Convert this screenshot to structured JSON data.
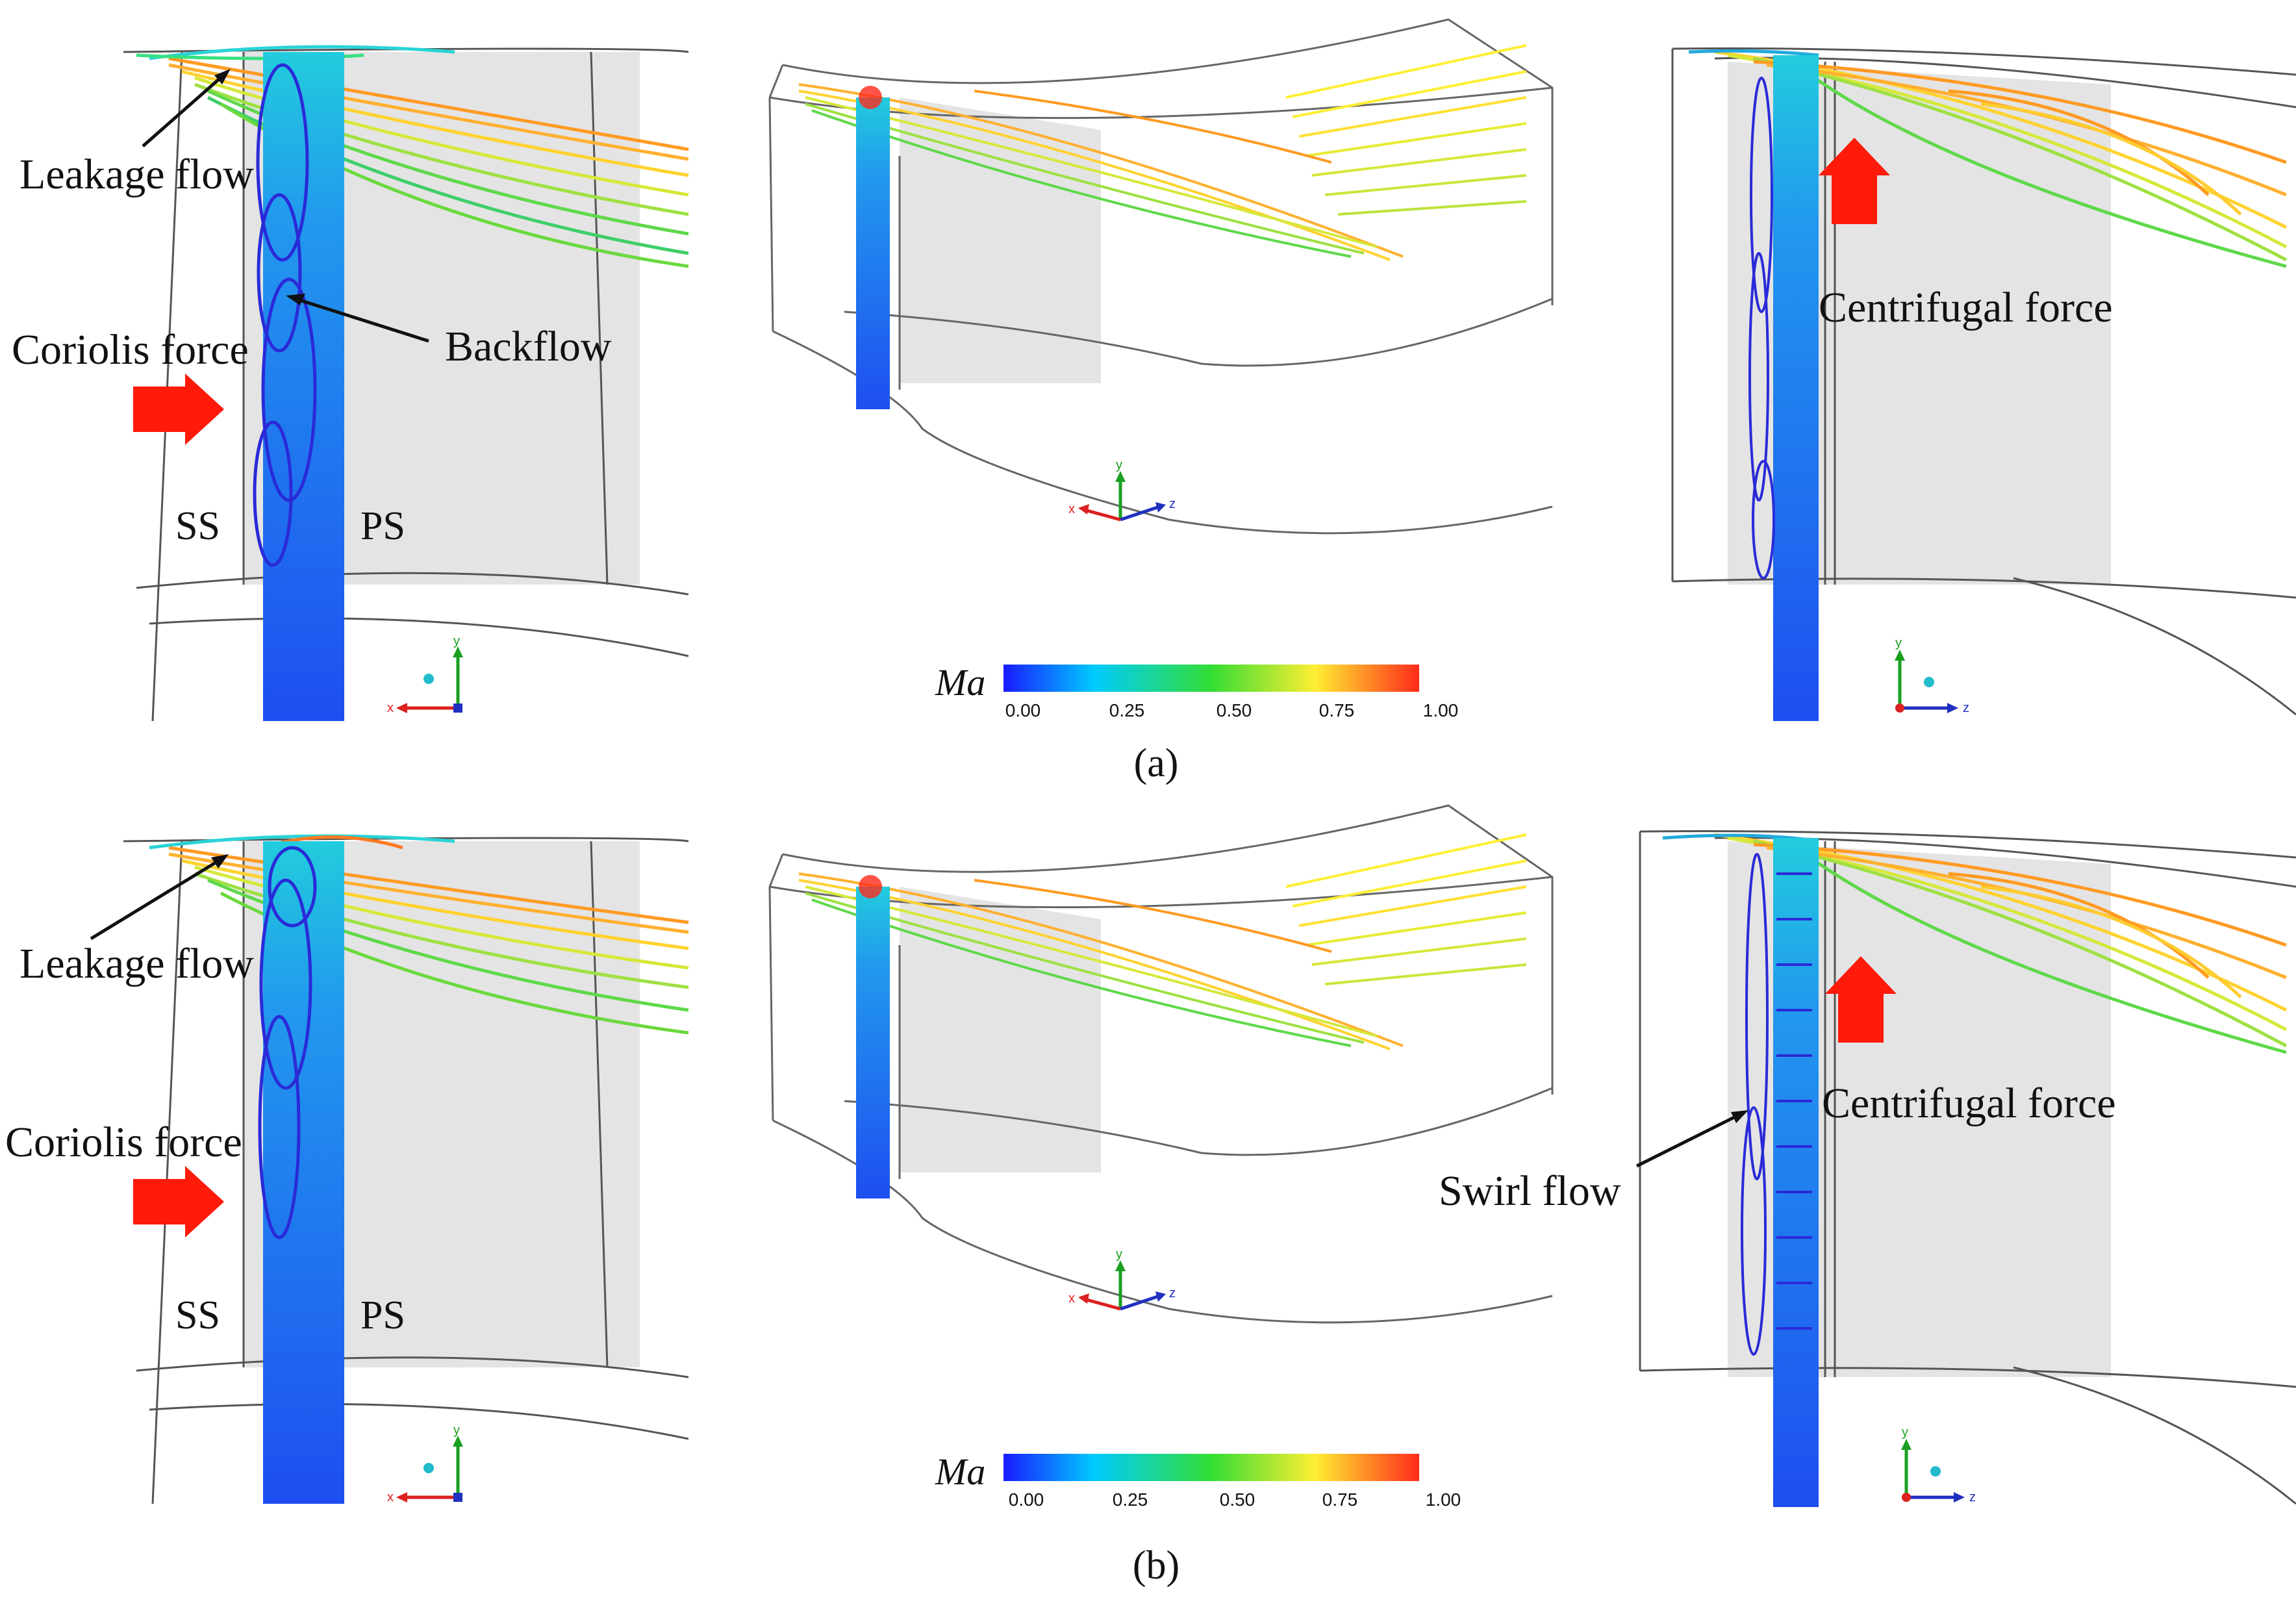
{
  "figure": {
    "panels": [
      {
        "caption": "(a)",
        "left_view": {
          "annotations": {
            "leakage": "Leakage flow",
            "coriolis": "Coriolis force",
            "backflow": "Backflow",
            "ss": "SS",
            "ps": "PS"
          },
          "axes": {
            "horizontal": "x",
            "vertical": "y"
          }
        },
        "middle_view": {
          "axes": {
            "x": "x",
            "y": "y",
            "z": "z"
          },
          "colorbar": {
            "label": "Ma",
            "ticks": [
              "0.00",
              "0.25",
              "0.50",
              "0.75",
              "1.00"
            ]
          }
        },
        "right_view": {
          "annotations": {
            "centrifugal": "Centrifugal force"
          },
          "axes": {
            "horizontal": "z",
            "vertical": "y"
          }
        }
      },
      {
        "caption": "(b)",
        "left_view": {
          "annotations": {
            "leakage": "Leakage flow",
            "coriolis": "Coriolis force",
            "ss": "SS",
            "ps": "PS"
          },
          "axes": {
            "horizontal": "x",
            "vertical": "y"
          }
        },
        "middle_view": {
          "axes": {
            "x": "x",
            "y": "y",
            "z": "z"
          },
          "colorbar": {
            "label": "Ma",
            "ticks": [
              "0.00",
              "0.25",
              "0.50",
              "0.75",
              "1.00"
            ]
          }
        },
        "right_view": {
          "annotations": {
            "centrifugal": "Centrifugal force",
            "swirl": "Swirl flow"
          },
          "axes": {
            "horizontal": "z",
            "vertical": "y"
          }
        }
      }
    ],
    "colormap": [
      "#1a1aff",
      "#00ccff",
      "#33dd33",
      "#ffee33",
      "#ff2a1a"
    ],
    "colors": {
      "force_arrow": "#ff1a0a",
      "blade_surface": "#e4e4e4",
      "jet": "#2255ee",
      "vortex": "#2a2ad8"
    }
  }
}
